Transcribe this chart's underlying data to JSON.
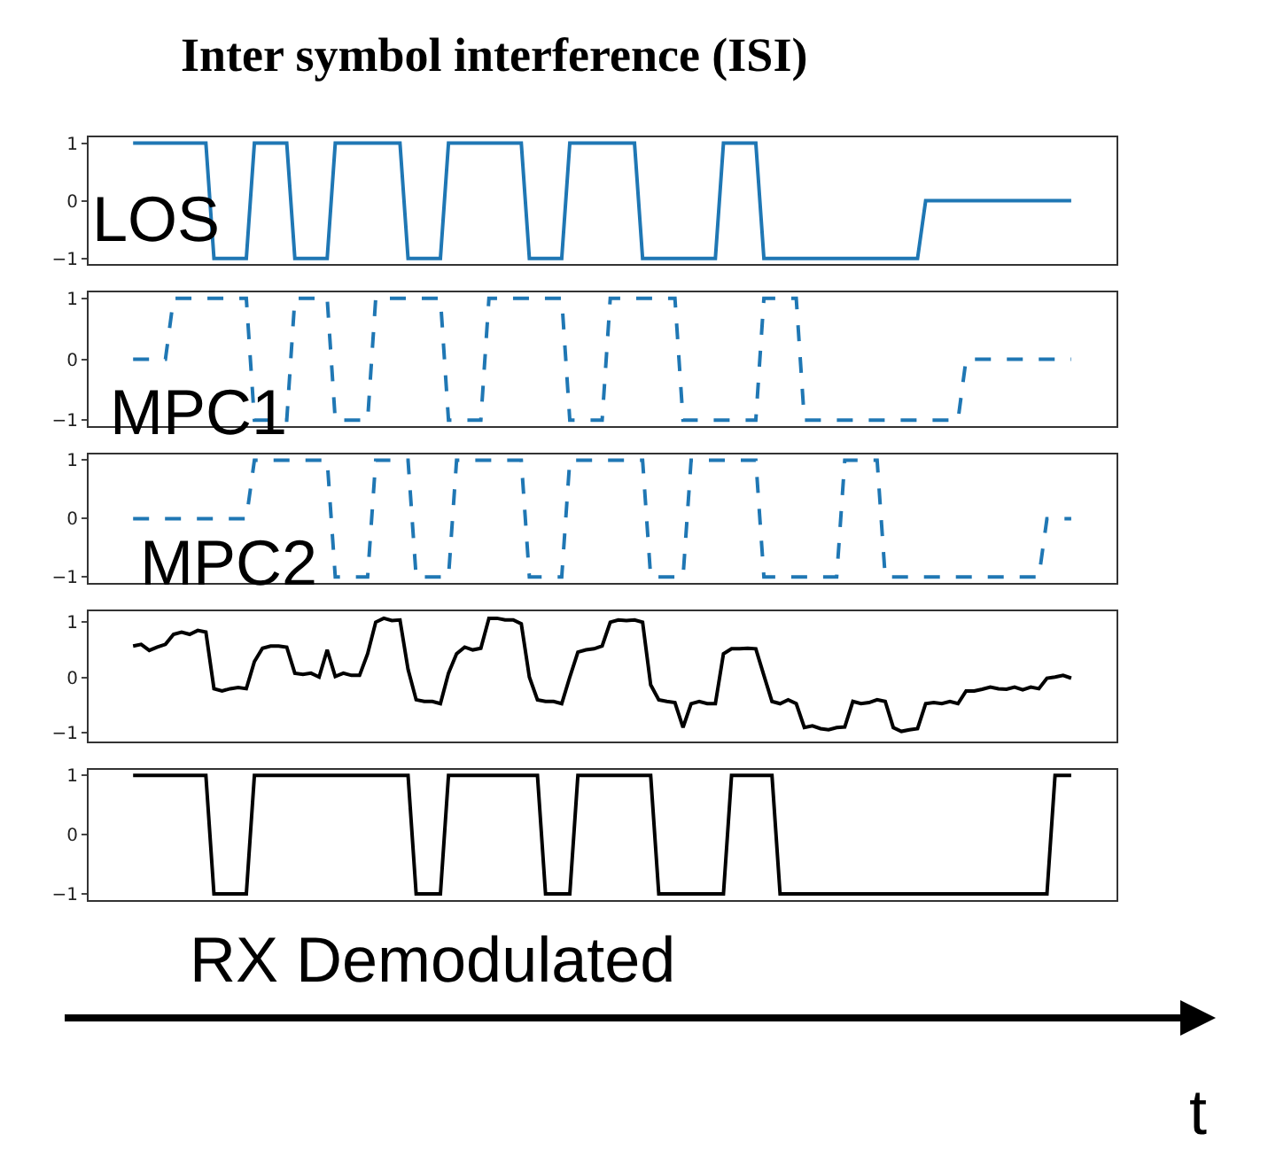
{
  "chart_data": [
    {
      "type": "line",
      "title": "Inter symbol interference (ISI)",
      "categories": [
        null,
        null,
        null,
        null,
        null,
        null,
        null,
        null,
        null,
        null,
        null,
        null,
        null,
        null,
        null,
        null,
        null,
        null,
        null,
        null,
        null,
        null,
        null,
        null,
        null,
        null,
        null,
        null,
        null,
        null,
        null,
        null,
        null,
        null,
        null,
        null,
        null,
        null,
        null,
        null,
        null,
        null,
        null,
        null,
        null,
        null,
        null,
        null,
        null,
        null,
        null,
        null,
        null,
        null,
        null,
        null,
        null,
        null,
        null,
        null,
        null,
        null,
        null,
        null,
        null,
        null,
        null,
        null,
        null,
        null,
        null,
        null,
        null,
        null,
        null,
        null,
        null,
        null,
        null,
        null,
        null,
        null,
        null,
        null,
        null,
        null,
        null,
        null,
        null,
        null,
        null,
        null,
        null,
        null,
        null,
        null,
        null,
        null,
        null,
        null,
        null,
        null,
        null,
        null,
        null,
        null,
        null,
        null,
        null,
        null,
        null,
        null,
        null,
        null,
        null,
        null,
        null
      ],
      "ylim": [
        -1.1,
        1.1
      ],
      "yticks": [
        -1,
        0,
        1
      ],
      "tick_labels": "y",
      "marker": "none",
      "series": [
        {
          "name": "LOS",
          "color": "#1f77b4",
          "line_style": "solid",
          "values": [
            1,
            1,
            1,
            1,
            1,
            1,
            1,
            1,
            1,
            1,
            -1,
            -1,
            -1,
            -1,
            -1,
            1,
            1,
            1,
            1,
            1,
            -1,
            -1,
            -1,
            -1,
            -1,
            1,
            1,
            1,
            1,
            1,
            1,
            1,
            1,
            1,
            -1,
            -1,
            -1,
            -1,
            -1,
            1,
            1,
            1,
            1,
            1,
            1,
            1,
            1,
            1,
            1,
            -1,
            -1,
            -1,
            -1,
            -1,
            1,
            1,
            1,
            1,
            1,
            1,
            1,
            1,
            1,
            -1,
            -1,
            -1,
            -1,
            -1,
            -1,
            -1,
            -1,
            -1,
            -1,
            1,
            1,
            1,
            1,
            1,
            -1,
            -1,
            -1,
            -1,
            -1,
            -1,
            -1,
            -1,
            -1,
            -1,
            -1,
            -1,
            -1,
            -1,
            -1,
            -1,
            -1,
            -1,
            -1,
            -1,
            0,
            0,
            0,
            0,
            0,
            0,
            0,
            0,
            0,
            0,
            0,
            0,
            0,
            0,
            0,
            0,
            0,
            0,
            0
          ]
        }
      ]
    },
    {
      "type": "line",
      "categories": [
        null,
        null,
        null,
        null,
        null,
        null,
        null,
        null,
        null,
        null,
        null,
        null,
        null,
        null,
        null,
        null,
        null,
        null,
        null,
        null,
        null,
        null,
        null,
        null,
        null,
        null,
        null,
        null,
        null,
        null,
        null,
        null,
        null,
        null,
        null,
        null,
        null,
        null,
        null,
        null,
        null,
        null,
        null,
        null,
        null,
        null,
        null,
        null,
        null,
        null,
        null,
        null,
        null,
        null,
        null,
        null,
        null,
        null,
        null,
        null,
        null,
        null,
        null,
        null,
        null,
        null,
        null,
        null,
        null,
        null,
        null,
        null,
        null,
        null,
        null,
        null,
        null,
        null,
        null,
        null,
        null,
        null,
        null,
        null,
        null,
        null,
        null,
        null,
        null,
        null,
        null,
        null,
        null,
        null,
        null,
        null,
        null,
        null,
        null,
        null,
        null,
        null,
        null,
        null,
        null,
        null,
        null,
        null,
        null,
        null,
        null,
        null,
        null,
        null,
        null,
        null,
        null
      ],
      "ylim": [
        -1.1,
        1.1
      ],
      "yticks": [
        -1,
        0,
        1
      ],
      "tick_labels": "y",
      "marker": "none",
      "series": [
        {
          "name": "MPC1",
          "color": "#1f77b4",
          "line_style": "dashed",
          "values": [
            0,
            0,
            0,
            0,
            0,
            1,
            1,
            1,
            1,
            1,
            1,
            1,
            1,
            1,
            1,
            -1,
            -1,
            -1,
            -1,
            -1,
            1,
            1,
            1,
            1,
            1,
            -1,
            -1,
            -1,
            -1,
            -1,
            1,
            1,
            1,
            1,
            1,
            1,
            1,
            1,
            1,
            -1,
            -1,
            -1,
            -1,
            -1,
            1,
            1,
            1,
            1,
            1,
            1,
            1,
            1,
            1,
            1,
            -1,
            -1,
            -1,
            -1,
            -1,
            1,
            1,
            1,
            1,
            1,
            1,
            1,
            1,
            1,
            -1,
            -1,
            -1,
            -1,
            -1,
            -1,
            -1,
            -1,
            -1,
            -1,
            1,
            1,
            1,
            1,
            1,
            -1,
            -1,
            -1,
            -1,
            -1,
            -1,
            -1,
            -1,
            -1,
            -1,
            -1,
            -1,
            -1,
            -1,
            -1,
            -1,
            -1,
            -1,
            -1,
            -1,
            0,
            0,
            0,
            0,
            0,
            0,
            0,
            0,
            0,
            0,
            0,
            0,
            0,
            0
          ]
        }
      ]
    },
    {
      "type": "line",
      "categories": [
        null,
        null,
        null,
        null,
        null,
        null,
        null,
        null,
        null,
        null,
        null,
        null,
        null,
        null,
        null,
        null,
        null,
        null,
        null,
        null,
        null,
        null,
        null,
        null,
        null,
        null,
        null,
        null,
        null,
        null,
        null,
        null,
        null,
        null,
        null,
        null,
        null,
        null,
        null,
        null,
        null,
        null,
        null,
        null,
        null,
        null,
        null,
        null,
        null,
        null,
        null,
        null,
        null,
        null,
        null,
        null,
        null,
        null,
        null,
        null,
        null,
        null,
        null,
        null,
        null,
        null,
        null,
        null,
        null,
        null,
        null,
        null,
        null,
        null,
        null,
        null,
        null,
        null,
        null,
        null,
        null,
        null,
        null,
        null,
        null,
        null,
        null,
        null,
        null,
        null,
        null,
        null,
        null,
        null,
        null,
        null,
        null,
        null,
        null,
        null,
        null,
        null,
        null,
        null,
        null,
        null,
        null,
        null,
        null,
        null,
        null,
        null,
        null,
        null,
        null,
        null,
        null
      ],
      "ylim": [
        -1.1,
        1.1
      ],
      "yticks": [
        -1,
        0,
        1
      ],
      "tick_labels": "y",
      "marker": "none",
      "series": [
        {
          "name": "MPC2",
          "color": "#1f77b4",
          "line_style": "dashed",
          "values": [
            0,
            0,
            0,
            0,
            0,
            0,
            0,
            0,
            0,
            0,
            0,
            0,
            0,
            0,
            0,
            1,
            1,
            1,
            1,
            1,
            1,
            1,
            1,
            1,
            1,
            -1,
            -1,
            -1,
            -1,
            -1,
            1,
            1,
            1,
            1,
            1,
            -1,
            -1,
            -1,
            -1,
            -1,
            1,
            1,
            1,
            1,
            1,
            1,
            1,
            1,
            1,
            -1,
            -1,
            -1,
            -1,
            -1,
            1,
            1,
            1,
            1,
            1,
            1,
            1,
            1,
            1,
            1,
            -1,
            -1,
            -1,
            -1,
            -1,
            1,
            1,
            1,
            1,
            1,
            1,
            1,
            1,
            1,
            -1,
            -1,
            -1,
            -1,
            -1,
            -1,
            -1,
            -1,
            -1,
            -1,
            1,
            1,
            1,
            1,
            1,
            -1,
            -1,
            -1,
            -1,
            -1,
            -1,
            -1,
            -1,
            -1,
            -1,
            -1,
            -1,
            -1,
            -1,
            -1,
            -1,
            -1,
            -1,
            -1,
            -1,
            0,
            0,
            0,
            0
          ]
        }
      ]
    },
    {
      "type": "line",
      "categories": [
        null,
        null,
        null,
        null,
        null,
        null,
        null,
        null,
        null,
        null,
        null,
        null,
        null,
        null,
        null,
        null,
        null,
        null,
        null,
        null,
        null,
        null,
        null,
        null,
        null,
        null,
        null,
        null,
        null,
        null,
        null,
        null,
        null,
        null,
        null,
        null,
        null,
        null,
        null,
        null,
        null,
        null,
        null,
        null,
        null,
        null,
        null,
        null,
        null,
        null,
        null,
        null,
        null,
        null,
        null,
        null,
        null,
        null,
        null,
        null,
        null,
        null,
        null,
        null,
        null,
        null,
        null,
        null,
        null,
        null,
        null,
        null,
        null,
        null,
        null,
        null,
        null,
        null,
        null,
        null,
        null,
        null,
        null,
        null,
        null,
        null,
        null,
        null,
        null,
        null,
        null,
        null,
        null,
        null,
        null,
        null,
        null,
        null,
        null,
        null,
        null,
        null,
        null,
        null,
        null,
        null,
        null,
        null,
        null,
        null,
        null,
        null,
        null,
        null,
        null,
        null,
        null
      ],
      "ylim": [
        -1.15,
        1.2
      ],
      "yticks": [
        -1,
        0,
        1
      ],
      "tick_labels": "y",
      "marker": "none",
      "series": [
        {
          "color": "#000000",
          "line_style": "solid",
          "values": [
            0.57,
            0.6,
            0.49,
            0.55,
            0.6,
            0.78,
            0.82,
            0.78,
            0.85,
            0.82,
            -0.2,
            -0.24,
            -0.2,
            -0.18,
            -0.2,
            0.29,
            0.53,
            0.57,
            0.57,
            0.55,
            0.08,
            0.06,
            0.08,
            0.01,
            0.5,
            0.02,
            0.08,
            0.04,
            0.04,
            0.43,
            1.0,
            1.07,
            1.03,
            1.04,
            0.15,
            -0.4,
            -0.43,
            -0.43,
            -0.47,
            0.08,
            0.43,
            0.55,
            0.5,
            0.53,
            1.07,
            1.07,
            1.04,
            1.04,
            0.97,
            0.01,
            -0.4,
            -0.43,
            -0.43,
            -0.47,
            0.01,
            0.46,
            0.5,
            0.52,
            0.57,
            1.0,
            1.04,
            1.03,
            1.04,
            1.0,
            -0.13,
            -0.4,
            -0.43,
            -0.45,
            -0.9,
            -0.47,
            -0.43,
            -0.47,
            -0.47,
            0.43,
            0.52,
            0.52,
            0.53,
            0.52,
            0.04,
            -0.43,
            -0.47,
            -0.4,
            -0.47,
            -0.9,
            -0.87,
            -0.92,
            -0.94,
            -0.9,
            -0.89,
            -0.43,
            -0.47,
            -0.45,
            -0.4,
            -0.43,
            -0.9,
            -0.97,
            -0.94,
            -0.92,
            -0.47,
            -0.45,
            -0.47,
            -0.43,
            -0.47,
            -0.24,
            -0.24,
            -0.21,
            -0.17,
            -0.2,
            -0.21,
            -0.17,
            -0.22,
            -0.17,
            -0.2,
            -0.01,
            0.01,
            0.04,
            -0.01
          ]
        }
      ]
    },
    {
      "type": "line",
      "xlabel": "t",
      "categories": [
        null,
        null,
        null,
        null,
        null,
        null,
        null,
        null,
        null,
        null,
        null,
        null,
        null,
        null,
        null,
        null,
        null,
        null,
        null,
        null,
        null,
        null,
        null,
        null,
        null,
        null,
        null,
        null,
        null,
        null,
        null,
        null,
        null,
        null,
        null,
        null,
        null,
        null,
        null,
        null,
        null,
        null,
        null,
        null,
        null,
        null,
        null,
        null,
        null,
        null,
        null,
        null,
        null,
        null,
        null,
        null,
        null,
        null,
        null,
        null,
        null,
        null,
        null,
        null,
        null,
        null,
        null,
        null,
        null,
        null,
        null,
        null,
        null,
        null,
        null,
        null,
        null,
        null,
        null,
        null,
        null,
        null,
        null,
        null,
        null,
        null,
        null,
        null,
        null,
        null,
        null,
        null,
        null,
        null,
        null,
        null,
        null,
        null,
        null,
        null,
        null,
        null,
        null,
        null,
        null,
        null,
        null,
        null,
        null,
        null,
        null,
        null,
        null,
        null,
        null,
        null,
        null
      ],
      "ylim": [
        -1.1,
        1.1
      ],
      "yticks": [
        -1,
        0,
        1
      ],
      "tick_labels": "y",
      "marker": "none",
      "series": [
        {
          "name": "RX Demodulated",
          "color": "#000000",
          "line_style": "solid",
          "values": [
            1,
            1,
            1,
            1,
            1,
            1,
            1,
            1,
            1,
            1,
            -1,
            -1,
            -1,
            -1,
            -1,
            1,
            1,
            1,
            1,
            1,
            1,
            1,
            1,
            1,
            1,
            1,
            1,
            1,
            1,
            1,
            1,
            1,
            1,
            1,
            1,
            -1,
            -1,
            -1,
            -1,
            1,
            1,
            1,
            1,
            1,
            1,
            1,
            1,
            1,
            1,
            1,
            1,
            -1,
            -1,
            -1,
            -1,
            1,
            1,
            1,
            1,
            1,
            1,
            1,
            1,
            1,
            1,
            -1,
            -1,
            -1,
            -1,
            -1,
            -1,
            -1,
            -1,
            -1,
            1,
            1,
            1,
            1,
            1,
            1,
            -1,
            -1,
            -1,
            -1,
            -1,
            -1,
            -1,
            -1,
            -1,
            -1,
            -1,
            -1,
            -1,
            -1,
            -1,
            -1,
            -1,
            -1,
            -1,
            -1,
            -1,
            -1,
            -1,
            -1,
            -1,
            -1,
            -1,
            -1,
            -1,
            -1,
            -1,
            -1,
            -1,
            -1,
            1,
            1,
            1
          ]
        }
      ]
    }
  ]
}
